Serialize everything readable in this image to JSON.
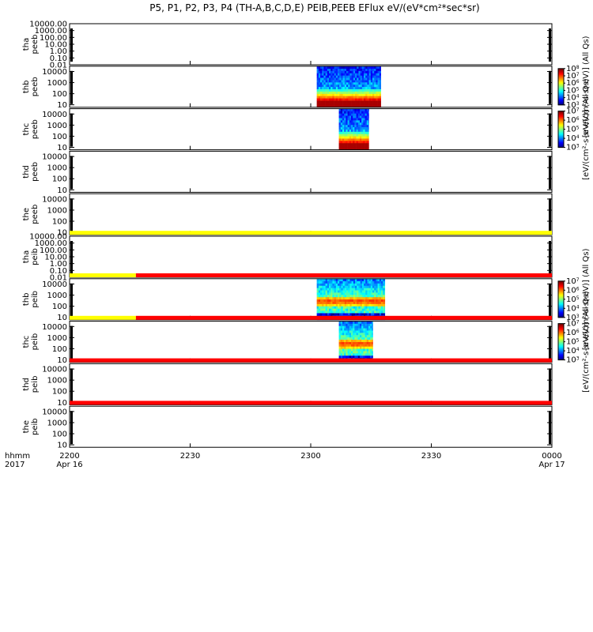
{
  "chart_data": {
    "type": "heatmap",
    "title": "P5, P1, P2, P3, P4 (TH-A,B,C,D,E) PEIB,PEEB EFlux eV/(eV*cm²*sec*sr)",
    "x_axis": {
      "range_minutes": [
        0,
        120
      ],
      "tick_labels": [
        {
          "minute": 0,
          "label": "2200",
          "sub": "Apr 16"
        },
        {
          "minute": 30,
          "label": "2230",
          "sub": ""
        },
        {
          "minute": 60,
          "label": "2300",
          "sub": ""
        },
        {
          "minute": 90,
          "label": "2330",
          "sub": ""
        },
        {
          "minute": 120,
          "label": "0000",
          "sub": "Apr 17"
        }
      ],
      "row_labels": [
        "hhmm",
        "2017"
      ]
    },
    "panels": [
      {
        "probe": "tha",
        "species": "peeb",
        "ylim": [
          0.01,
          10000
        ],
        "yticks": [
          "10000.00",
          "1000.00",
          "100.00",
          "10.00",
          "1.00",
          "0.10",
          "0.01"
        ],
        "flag_bar": null,
        "data": [],
        "colorbar": null
      },
      {
        "probe": "thb",
        "species": "peeb",
        "ylim": [
          6,
          30000
        ],
        "yticks": [
          "10000",
          "1000",
          "100",
          "10"
        ],
        "flag_bar": null,
        "data": [
          {
            "start": 61.5,
            "end": 77.5,
            "mode": "electron"
          }
        ],
        "colorbar": {
          "title": "[eV/(cm²-s-sr-eV)] (All Qs)",
          "exponents": [
            "3",
            "4",
            "5",
            "6",
            "7",
            "8"
          ]
        }
      },
      {
        "probe": "thc",
        "species": "peeb",
        "ylim": [
          6,
          30000
        ],
        "yticks": [
          "10000",
          "1000",
          "100",
          "10"
        ],
        "flag_bar": null,
        "data": [
          {
            "start": 67.0,
            "end": 74.5,
            "mode": "electron"
          }
        ],
        "colorbar": {
          "title": "[eV/(cm²-s-sr-eV)] (All Qs)",
          "exponents": [
            "3",
            "4",
            "5",
            "6",
            "7"
          ]
        }
      },
      {
        "probe": "thd",
        "species": "peeb",
        "ylim": [
          6,
          30000
        ],
        "yticks": [
          "10000",
          "1000",
          "100",
          "10"
        ],
        "flag_bar": null,
        "data": [],
        "colorbar": null
      },
      {
        "probe": "the",
        "species": "peeb",
        "ylim": [
          6,
          30000
        ],
        "yticks": [
          "10000",
          "1000",
          "100",
          "10"
        ],
        "flag_bar": {
          "segments": [
            {
              "start": 0,
              "end": 120,
              "color": "#ffff00"
            }
          ]
        },
        "data": [],
        "colorbar": null
      },
      {
        "probe": "tha",
        "species": "peib",
        "ylim": [
          0.01,
          10000
        ],
        "yticks": [
          "10000.00",
          "1000.00",
          "100.00",
          "10.00",
          "1.00",
          "0.10",
          "0.01"
        ],
        "flag_bar": {
          "segments": [
            {
              "start": 0,
              "end": 16.5,
              "color": "#ffff00"
            },
            {
              "start": 16.5,
              "end": 120,
              "color": "#ff0000"
            }
          ]
        },
        "data": [],
        "colorbar": null
      },
      {
        "probe": "thb",
        "species": "peib",
        "ylim": [
          6,
          30000
        ],
        "yticks": [
          "10000",
          "1000",
          "100",
          "10"
        ],
        "flag_bar": {
          "segments": [
            {
              "start": 0,
              "end": 16.5,
              "color": "#ffff00"
            },
            {
              "start": 16.5,
              "end": 120,
              "color": "#ff0000"
            }
          ]
        },
        "data": [
          {
            "start": 61.5,
            "end": 78.5,
            "mode": "ion"
          }
        ],
        "colorbar": {
          "title": "[eV/(cm²-s-sr-eV)] (All Qs)",
          "exponents": [
            "3",
            "4",
            "5",
            "6",
            "7"
          ]
        }
      },
      {
        "probe": "thc",
        "species": "peib",
        "ylim": [
          6,
          30000
        ],
        "yticks": [
          "10000",
          "1000",
          "100",
          "10"
        ],
        "flag_bar": {
          "segments": [
            {
              "start": 0,
              "end": 120,
              "color": "#ff0000"
            }
          ]
        },
        "data": [
          {
            "start": 67.0,
            "end": 75.5,
            "mode": "ion"
          }
        ],
        "colorbar": {
          "title": "[eV/(cm²-s-sr-eV)] (All Qs)",
          "exponents": [
            "3",
            "4",
            "5",
            "6",
            "7"
          ]
        }
      },
      {
        "probe": "thd",
        "species": "peib",
        "ylim": [
          6,
          30000
        ],
        "yticks": [
          "10000",
          "1000",
          "100",
          "10"
        ],
        "flag_bar": {
          "segments": [
            {
              "start": 0,
              "end": 120,
              "color": "#ff0000"
            }
          ]
        },
        "data": [],
        "colorbar": null
      },
      {
        "probe": "the",
        "species": "peib",
        "ylim": [
          6,
          30000
        ],
        "yticks": [
          "10000",
          "1000",
          "100",
          "10"
        ],
        "flag_bar": null,
        "data": [],
        "colorbar": null
      }
    ]
  }
}
